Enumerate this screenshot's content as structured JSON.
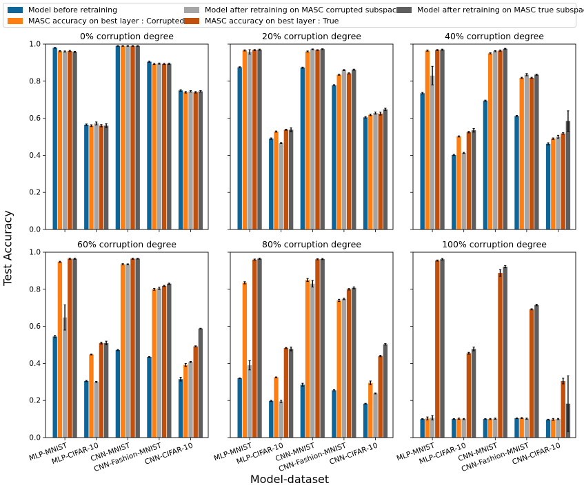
{
  "chart_data": {
    "type": "bar",
    "ylabel": "Test Accuracy",
    "xlabel": "Model-dataset",
    "ylim": [
      0,
      1.0
    ],
    "yticks": [
      "0.0",
      "0.2",
      "0.4",
      "0.6",
      "0.8",
      "1.0"
    ],
    "categories": [
      "MLP-MNIST",
      "MLP-CIFAR-10",
      "CNN-MNIST",
      "CNN-Fashion-MNIST",
      "CNN-CIFAR-10"
    ],
    "legend": [
      {
        "name": "Model before retraining",
        "color": "#0e6597"
      },
      {
        "name": "MASC accuracy on best layer : Corrupted",
        "color": "#fd7f14"
      },
      {
        "name": "Model after retraining on MASC corrupted subspace",
        "color": "#a5a5a5"
      },
      {
        "name": "MASC accuracy on best layer : True",
        "color": "#c1500c"
      },
      {
        "name": "Model after retraining on MASC true subspace",
        "color": "#5e5e5e"
      }
    ],
    "panels": [
      {
        "title": "0% corruption degree",
        "series": [
          {
            "name": "Model before retraining",
            "values": [
              0.98,
              0.565,
              0.99,
              0.905,
              0.75
            ],
            "errors": [
              0.002,
              0.004,
              0.002,
              0.003,
              0.004
            ]
          },
          {
            "name": "MASC accuracy on best layer : Corrupted",
            "values": [
              0.962,
              0.56,
              0.99,
              0.893,
              0.74
            ],
            "errors": [
              0.003,
              0.005,
              0.002,
              0.003,
              0.004
            ]
          },
          {
            "name": "Model after retraining on MASC corrupted subspace",
            "values": [
              0.96,
              0.572,
              0.99,
              0.895,
              0.745
            ],
            "errors": [
              0.003,
              0.008,
              0.002,
              0.003,
              0.004
            ]
          },
          {
            "name": "MASC accuracy on best layer : True",
            "values": [
              0.963,
              0.56,
              0.99,
              0.893,
              0.74
            ],
            "errors": [
              0.003,
              0.006,
              0.002,
              0.003,
              0.004
            ]
          },
          {
            "name": "Model after retraining on MASC true subspace",
            "values": [
              0.958,
              0.56,
              0.99,
              0.894,
              0.745
            ],
            "errors": [
              0.003,
              0.01,
              0.002,
              0.003,
              0.004
            ]
          }
        ]
      },
      {
        "title": "20% corruption degree",
        "series": [
          {
            "name": "Model before retraining",
            "values": [
              0.875,
              0.49,
              0.873,
              0.778,
              0.605
            ],
            "errors": [
              0.003,
              0.004,
              0.003,
              0.003,
              0.004
            ]
          },
          {
            "name": "MASC accuracy on best layer : Corrupted",
            "values": [
              0.966,
              0.528,
              0.96,
              0.835,
              0.618
            ],
            "errors": [
              0.003,
              0.003,
              0.003,
              0.003,
              0.004
            ]
          },
          {
            "name": "Model after retraining on MASC corrupted subspace",
            "values": [
              0.958,
              0.466,
              0.972,
              0.86,
              0.628
            ],
            "errors": [
              0.012,
              0.003,
              0.002,
              0.003,
              0.006
            ]
          },
          {
            "name": "MASC accuracy on best layer : True",
            "values": [
              0.968,
              0.538,
              0.968,
              0.842,
              0.625
            ],
            "errors": [
              0.003,
              0.003,
              0.002,
              0.003,
              0.008
            ]
          },
          {
            "name": "Model after retraining on MASC true subspace",
            "values": [
              0.97,
              0.538,
              0.973,
              0.862,
              0.648
            ],
            "errors": [
              0.003,
              0.01,
              0.002,
              0.003,
              0.006
            ]
          }
        ]
      },
      {
        "title": "40% corruption degree",
        "series": [
          {
            "name": "Model before retraining",
            "values": [
              0.735,
              0.402,
              0.695,
              0.612,
              0.462
            ],
            "errors": [
              0.004,
              0.003,
              0.003,
              0.003,
              0.006
            ]
          },
          {
            "name": "MASC accuracy on best layer : Corrupted",
            "values": [
              0.965,
              0.502,
              0.95,
              0.818,
              0.49
            ],
            "errors": [
              0.003,
              0.003,
              0.003,
              0.003,
              0.004
            ]
          },
          {
            "name": "Model after retraining on MASC corrupted subspace",
            "values": [
              0.83,
              0.413,
              0.962,
              0.835,
              0.5
            ],
            "errors": [
              0.05,
              0.003,
              0.003,
              0.006,
              0.008
            ]
          },
          {
            "name": "MASC accuracy on best layer : True",
            "values": [
              0.968,
              0.525,
              0.965,
              0.818,
              0.518
            ],
            "errors": [
              0.003,
              0.004,
              0.003,
              0.003,
              0.004
            ]
          },
          {
            "name": "Model after retraining on MASC true subspace",
            "values": [
              0.97,
              0.535,
              0.975,
              0.835,
              0.585
            ],
            "errors": [
              0.003,
              0.01,
              0.002,
              0.003,
              0.055
            ]
          }
        ]
      },
      {
        "title": "60% corruption degree",
        "series": [
          {
            "name": "Model before retraining",
            "values": [
              0.545,
              0.305,
              0.472,
              0.435,
              0.315
            ],
            "errors": [
              0.006,
              0.003,
              0.003,
              0.002,
              0.01
            ]
          },
          {
            "name": "MASC accuracy on best layer : Corrupted",
            "values": [
              0.948,
              0.448,
              0.935,
              0.8,
              0.392
            ],
            "errors": [
              0.003,
              0.002,
              0.003,
              0.005,
              0.008
            ]
          },
          {
            "name": "Model after retraining on MASC corrupted subspace",
            "values": [
              0.648,
              0.3,
              0.935,
              0.805,
              0.408
            ],
            "errors": [
              0.068,
              0.003,
              0.002,
              0.006,
              0.003
            ]
          },
          {
            "name": "MASC accuracy on best layer : True",
            "values": [
              0.965,
              0.51,
              0.965,
              0.818,
              0.492
            ],
            "errors": [
              0.003,
              0.005,
              0.003,
              0.003,
              0.003
            ]
          },
          {
            "name": "Model after retraining on MASC true subspace",
            "values": [
              0.965,
              0.51,
              0.965,
              0.83,
              0.588
            ],
            "errors": [
              0.003,
              0.01,
              0.002,
              0.003,
              0.002
            ]
          }
        ]
      },
      {
        "title": "80% corruption degree",
        "series": [
          {
            "name": "Model before retraining",
            "values": [
              0.32,
              0.198,
              0.285,
              0.255,
              0.183
            ],
            "errors": [
              0.002,
              0.003,
              0.008,
              0.003,
              0.002
            ]
          },
          {
            "name": "MASC accuracy on best layer : Corrupted",
            "values": [
              0.835,
              0.325,
              0.85,
              0.74,
              0.295
            ],
            "errors": [
              0.006,
              0.002,
              0.008,
              0.006,
              0.01
            ]
          },
          {
            "name": "Model after retraining on MASC corrupted subspace",
            "values": [
              0.39,
              0.195,
              0.83,
              0.748,
              0.238
            ],
            "errors": [
              0.025,
              0.006,
              0.018,
              0.004,
              0.003
            ]
          },
          {
            "name": "MASC accuracy on best layer : True",
            "values": [
              0.96,
              0.483,
              0.962,
              0.8,
              0.44
            ],
            "errors": [
              0.003,
              0.003,
              0.003,
              0.004,
              0.004
            ]
          },
          {
            "name": "Model after retraining on MASC true subspace",
            "values": [
              0.965,
              0.478,
              0.963,
              0.808,
              0.503
            ],
            "errors": [
              0.003,
              0.01,
              0.003,
              0.005,
              0.004
            ]
          }
        ]
      },
      {
        "title": "100% corruption degree",
        "series": [
          {
            "name": "Model before retraining",
            "values": [
              0.1,
              0.1,
              0.1,
              0.104,
              0.097
            ],
            "errors": [
              0.002,
              0.002,
              0.002,
              0.002,
              0.002
            ]
          },
          {
            "name": "MASC accuracy on best layer : Corrupted",
            "values": [
              0.103,
              0.102,
              0.1,
              0.105,
              0.098
            ],
            "errors": [
              0.008,
              0.003,
              0.003,
              0.003,
              0.005
            ]
          },
          {
            "name": "Model after retraining on MASC corrupted subspace",
            "values": [
              0.107,
              0.1,
              0.102,
              0.102,
              0.1
            ],
            "errors": [
              0.012,
              0.003,
              0.003,
              0.003,
              0.003
            ]
          },
          {
            "name": "MASC accuracy on best layer : True",
            "values": [
              0.955,
              0.455,
              0.888,
              0.692,
              0.305
            ],
            "errors": [
              0.003,
              0.005,
              0.018,
              0.003,
              0.015
            ]
          },
          {
            "name": "Model after retraining on MASC true subspace",
            "values": [
              0.962,
              0.478,
              0.922,
              0.715,
              0.183
            ],
            "errors": [
              0.004,
              0.01,
              0.006,
              0.004,
              0.15
            ]
          }
        ]
      }
    ]
  }
}
